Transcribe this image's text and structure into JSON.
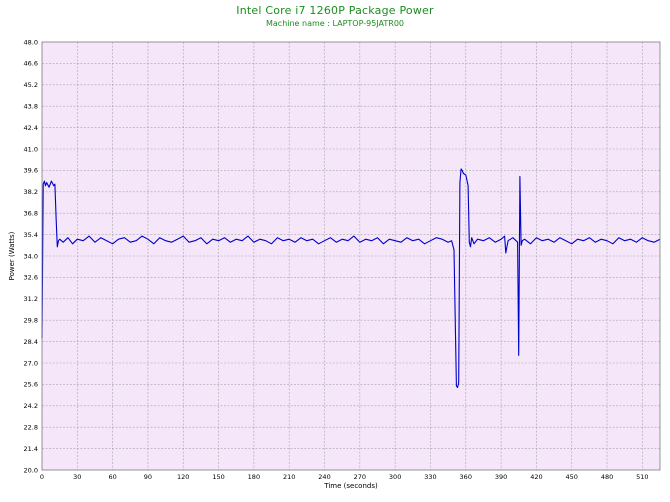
{
  "colors": {
    "title": "#1e8c1e",
    "plot_background": "#f5e6fa",
    "grid": "#a6a6a6",
    "series": "#0000c8"
  },
  "chart_data": {
    "type": "line",
    "title": "Intel Core i7 1260P Package Power",
    "subtitle": "Machine name : LAPTOP-95JATR00",
    "xlabel": "Time (seconds)",
    "ylabel": "Power (Watts)",
    "xlim": [
      0,
      525
    ],
    "ylim": [
      20.0,
      48.0
    ],
    "grid": true,
    "x_ticks": [
      0,
      30,
      60,
      90,
      120,
      150,
      180,
      210,
      240,
      270,
      300,
      330,
      360,
      390,
      420,
      450,
      480,
      510
    ],
    "y_ticks": [
      "20.0",
      "21.4",
      "22.8",
      "24.2",
      "25.6",
      "27.0",
      "28.4",
      "29.8",
      "31.2",
      "32.6",
      "34.0",
      "35.4",
      "36.8",
      "38.2",
      "39.6",
      "41.0",
      "42.4",
      "43.8",
      "45.2",
      "46.6",
      "48.0"
    ],
    "series": [
      {
        "values_summary": "sampled package power trace",
        "x": [
          0,
          1,
          2,
          3,
          4,
          6,
          8,
          10,
          11,
          12,
          13,
          14,
          15,
          18,
          22,
          26,
          30,
          35,
          40,
          45,
          50,
          55,
          60,
          65,
          70,
          75,
          80,
          85,
          90,
          95,
          100,
          105,
          110,
          115,
          120,
          125,
          130,
          135,
          140,
          145,
          150,
          155,
          160,
          165,
          170,
          175,
          180,
          185,
          190,
          195,
          200,
          205,
          210,
          215,
          220,
          225,
          230,
          235,
          240,
          245,
          250,
          255,
          260,
          265,
          270,
          275,
          280,
          285,
          290,
          295,
          300,
          305,
          310,
          315,
          320,
          325,
          330,
          335,
          340,
          345,
          348,
          350,
          352,
          353,
          354,
          355,
          356,
          357,
          358,
          360,
          362,
          363,
          364,
          365,
          367,
          370,
          375,
          380,
          385,
          390,
          393,
          394,
          396,
          400,
          404,
          405,
          406,
          407,
          408,
          410,
          415,
          420,
          425,
          430,
          435,
          440,
          445,
          450,
          455,
          460,
          465,
          470,
          475,
          480,
          485,
          490,
          495,
          500,
          505,
          510,
          515,
          520,
          525
        ],
        "y": [
          28.6,
          38.7,
          38.9,
          38.6,
          38.8,
          38.5,
          38.9,
          38.6,
          38.7,
          36.5,
          34.6,
          35.0,
          35.1,
          34.9,
          35.2,
          34.8,
          35.1,
          35.0,
          35.3,
          34.9,
          35.2,
          35.0,
          34.8,
          35.1,
          35.2,
          34.9,
          35.0,
          35.3,
          35.1,
          34.8,
          35.2,
          35.0,
          34.9,
          35.1,
          35.3,
          34.9,
          35.0,
          35.2,
          34.8,
          35.1,
          35.0,
          35.2,
          34.9,
          35.1,
          35.0,
          35.3,
          34.9,
          35.1,
          35.0,
          34.8,
          35.2,
          35.0,
          35.1,
          34.9,
          35.2,
          35.0,
          35.1,
          34.8,
          35.0,
          35.2,
          34.9,
          35.1,
          35.0,
          35.3,
          34.9,
          35.1,
          35.0,
          35.2,
          34.8,
          35.1,
          35.0,
          34.9,
          35.2,
          35.0,
          35.1,
          34.8,
          35.0,
          35.2,
          35.1,
          34.9,
          35.0,
          34.4,
          25.5,
          25.4,
          25.7,
          38.8,
          39.7,
          39.6,
          39.4,
          39.3,
          38.6,
          34.9,
          34.6,
          35.2,
          34.8,
          35.1,
          35.0,
          35.2,
          34.9,
          35.1,
          35.3,
          34.2,
          35.0,
          35.2,
          34.9,
          27.5,
          39.2,
          34.7,
          35.0,
          35.1,
          34.8,
          35.2,
          35.0,
          35.1,
          34.9,
          35.2,
          35.0,
          34.8,
          35.1,
          35.0,
          35.2,
          34.9,
          35.1,
          35.0,
          34.8,
          35.2,
          35.0,
          35.1,
          34.9,
          35.2,
          35.0,
          34.9,
          35.1
        ]
      }
    ]
  }
}
